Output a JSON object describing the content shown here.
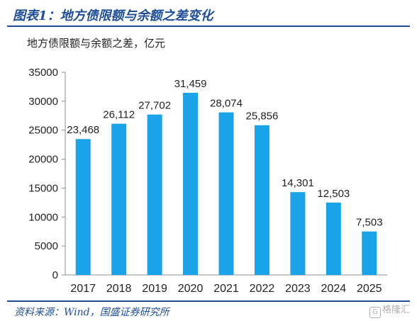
{
  "header": {
    "title": "图表1：地方债限额与余额之差变化"
  },
  "unit_label": "地方债限额与余额之差，亿元",
  "footer": {
    "source": "资料来源：Wind，国盛证券研究所"
  },
  "watermark": {
    "text": "格隆汇"
  },
  "colors": {
    "bar": "#1aa3e8",
    "accent": "#1f4e96"
  },
  "chart_data": {
    "type": "bar",
    "categories": [
      "2017",
      "2018",
      "2019",
      "2020",
      "2021",
      "2022",
      "2023",
      "2024",
      "2025"
    ],
    "values": [
      23468,
      26112,
      27702,
      31459,
      28074,
      25856,
      14301,
      12503,
      7503
    ],
    "data_labels": [
      "23,468",
      "26,112",
      "27,702",
      "31,459",
      "28,074",
      "25,856",
      "14,301",
      "12,503",
      "7,503"
    ],
    "yticks": [
      "0",
      "5000",
      "10000",
      "15000",
      "20000",
      "25000",
      "30000",
      "35000"
    ],
    "ylim": [
      0,
      35000
    ],
    "grid": false,
    "legend": "none",
    "title": "",
    "xlabel": "",
    "ylabel": ""
  }
}
